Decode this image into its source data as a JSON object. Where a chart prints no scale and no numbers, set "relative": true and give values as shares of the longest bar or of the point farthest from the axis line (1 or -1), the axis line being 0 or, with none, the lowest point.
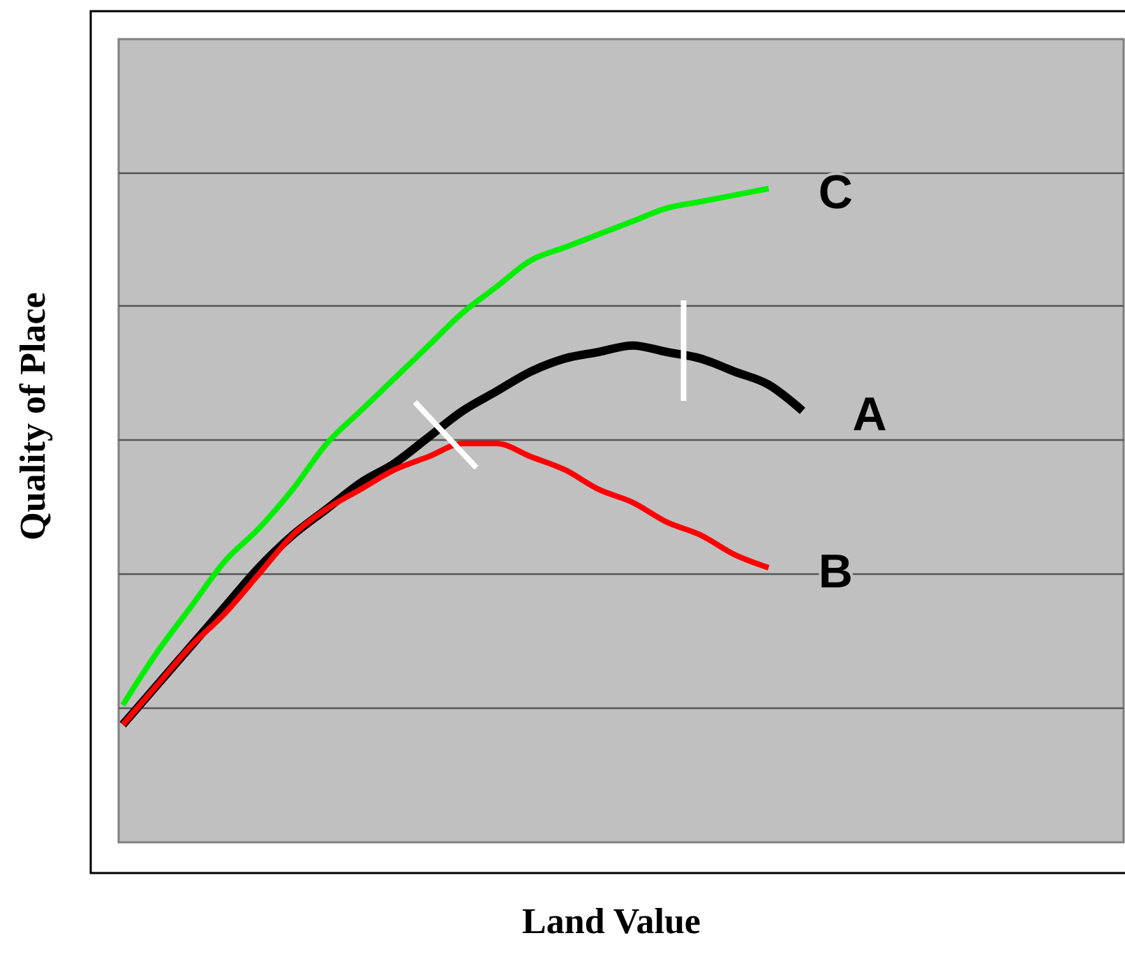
{
  "chart_data": {
    "type": "line",
    "xlabel": "Land Value",
    "ylabel": "Quality of Place",
    "relative": true,
    "grid": "y",
    "categories": [
      null,
      null,
      null,
      null,
      null,
      null,
      null,
      null,
      null,
      null,
      null,
      null,
      null,
      null,
      null,
      null,
      null,
      null,
      null,
      null,
      null,
      null,
      null,
      null,
      null,
      null,
      null,
      null,
      null,
      null
    ],
    "series": [
      {
        "name": "C",
        "color": "#00ee00",
        "values": [
          0.21,
          0.29,
          0.36,
          0.43,
          0.48,
          0.54,
          0.61,
          0.66,
          0.71,
          0.76,
          0.81,
          0.85,
          0.89,
          0.91,
          0.93,
          0.95,
          0.97,
          0.98,
          0.99,
          1.0,
          null,
          null,
          null,
          null,
          null,
          null,
          null,
          null,
          null,
          null
        ]
      },
      {
        "name": "A",
        "color": "#000000",
        "values": [
          0.18,
          0.24,
          0.3,
          0.36,
          0.42,
          0.47,
          0.51,
          0.55,
          0.58,
          0.62,
          0.66,
          0.69,
          0.72,
          0.74,
          0.75,
          0.76,
          0.75,
          0.74,
          0.72,
          0.7,
          0.66,
          null,
          null,
          null,
          null,
          null,
          null,
          null,
          null,
          null
        ]
      },
      {
        "name": "B",
        "color": "#ff0000",
        "values": [
          0.18,
          0.24,
          0.3,
          0.35,
          0.41,
          0.47,
          0.51,
          0.54,
          0.57,
          0.59,
          0.61,
          0.61,
          0.59,
          0.57,
          0.54,
          0.52,
          0.49,
          0.47,
          0.44,
          0.42,
          null,
          null,
          null,
          null,
          null,
          null,
          null,
          null,
          null,
          null
        ]
      }
    ]
  }
}
